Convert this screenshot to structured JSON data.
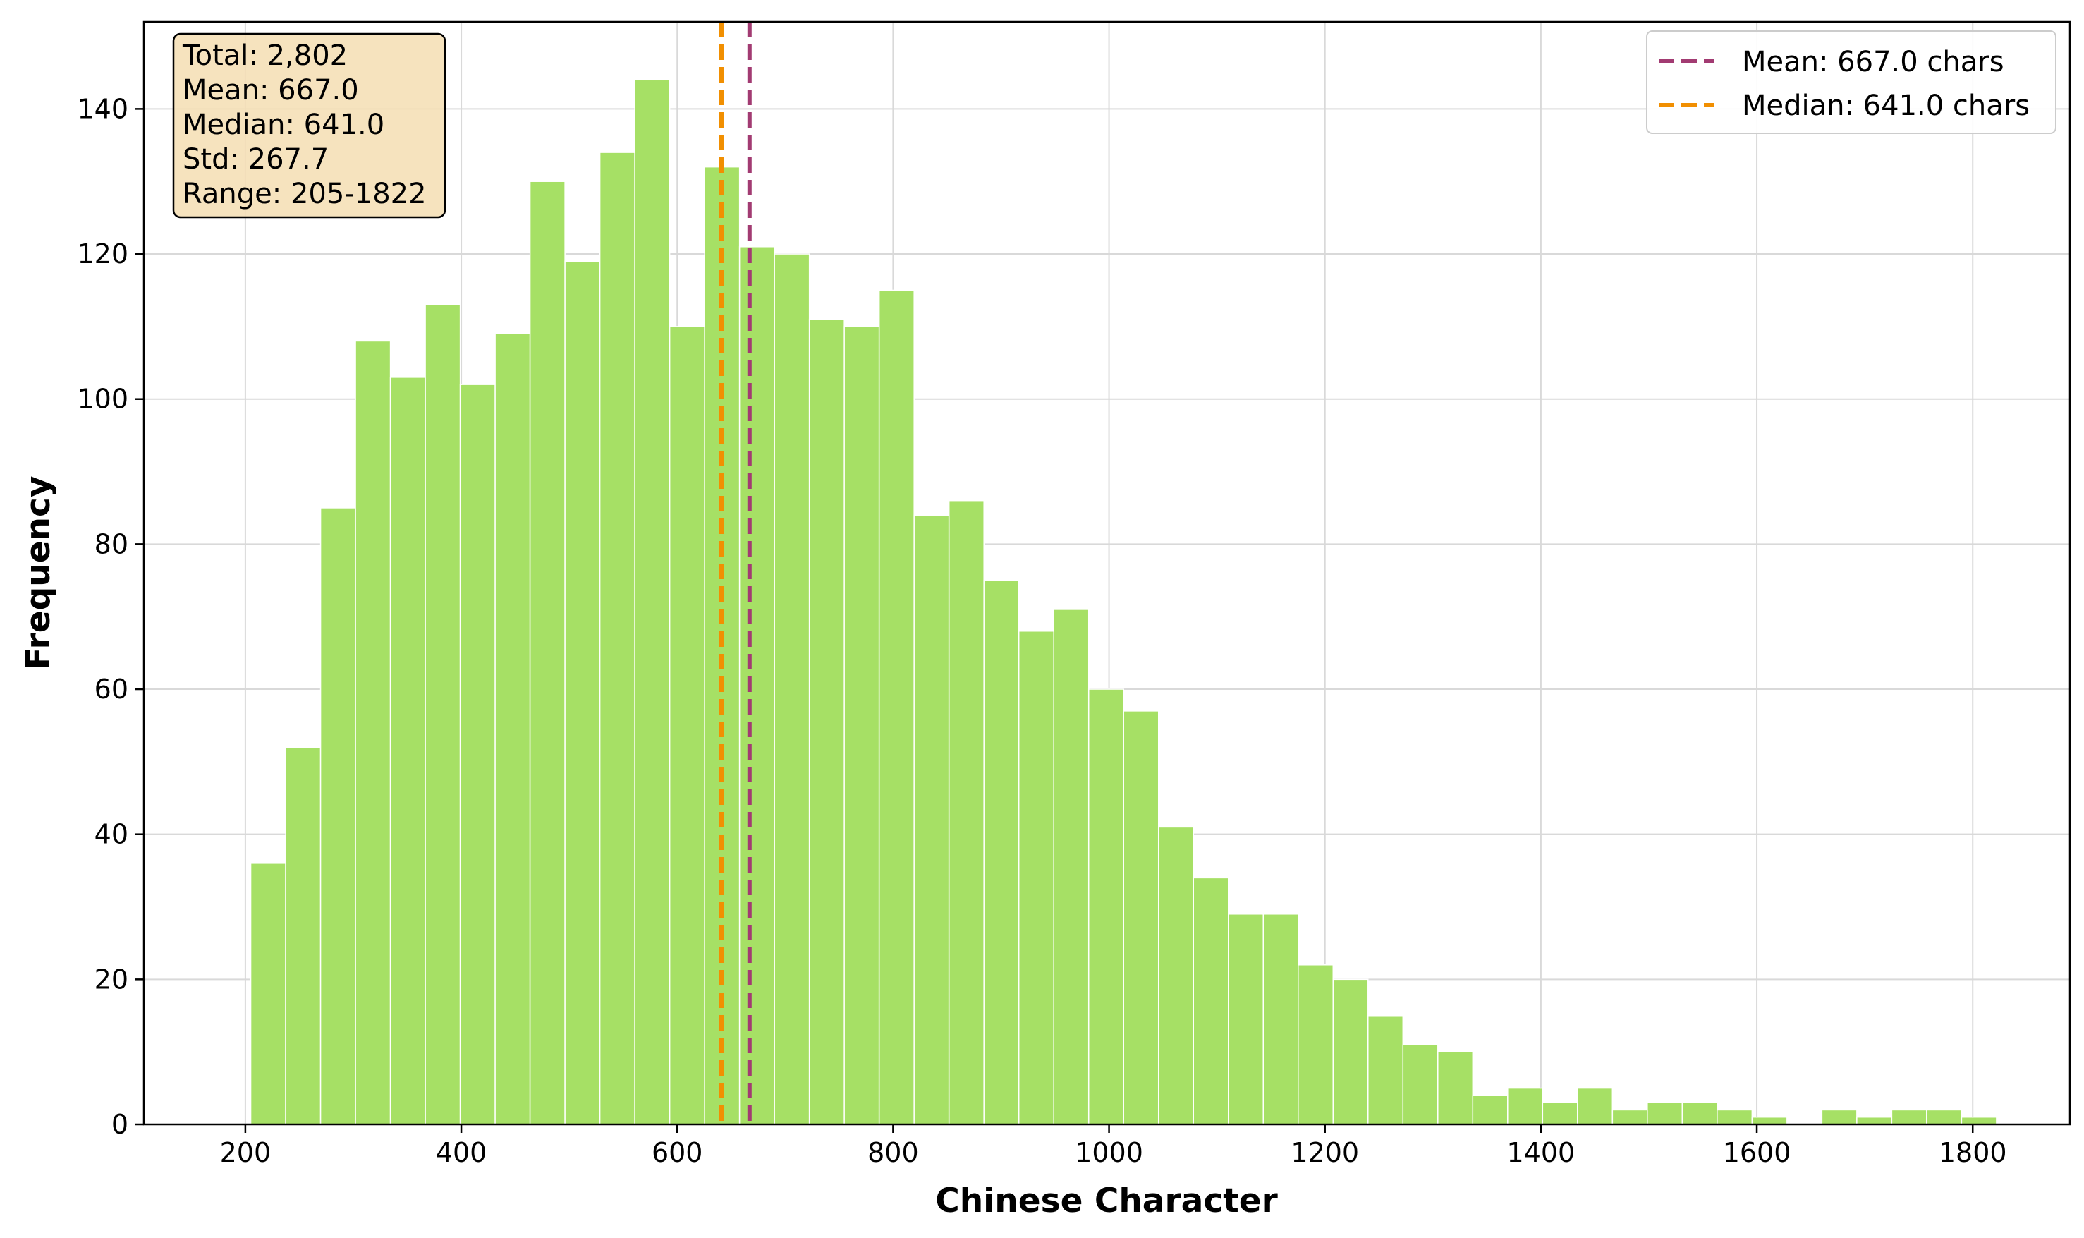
{
  "chart_data": {
    "type": "bar",
    "title": "",
    "xlabel": "Chinese Character",
    "ylabel": "Frequency",
    "xlim": [
      106,
      1890
    ],
    "ylim": [
      0,
      152
    ],
    "x_ticks": [
      200,
      400,
      600,
      800,
      1000,
      1200,
      1400,
      1600,
      1800
    ],
    "y_ticks": [
      0,
      20,
      40,
      60,
      80,
      100,
      120,
      140
    ],
    "grid": true,
    "bar_color": "#a6e065",
    "bin_width": 32.34,
    "bin_start": 205,
    "values": [
      36,
      52,
      85,
      108,
      103,
      113,
      102,
      109,
      130,
      119,
      134,
      144,
      110,
      132,
      121,
      120,
      111,
      110,
      115,
      84,
      86,
      75,
      68,
      71,
      60,
      57,
      41,
      34,
      29,
      29,
      22,
      20,
      15,
      11,
      10,
      4,
      5,
      3,
      5,
      2,
      3,
      3,
      2,
      1,
      0,
      2,
      1,
      2,
      2,
      1
    ],
    "ref_lines": [
      {
        "name": "Mean: 667.0 chars",
        "x": 667.0,
        "color": "#a23b72"
      },
      {
        "name": "Median: 641.0 chars",
        "x": 641.0,
        "color": "#f18f01"
      }
    ],
    "legend_position": "top-right",
    "stats_box": {
      "lines": [
        "Total: 2,802",
        "Mean: 667.0",
        "Median: 641.0",
        "Std: 267.7",
        "Range: 205-1822"
      ],
      "position": "top-left",
      "background": "#f5deb3"
    }
  }
}
